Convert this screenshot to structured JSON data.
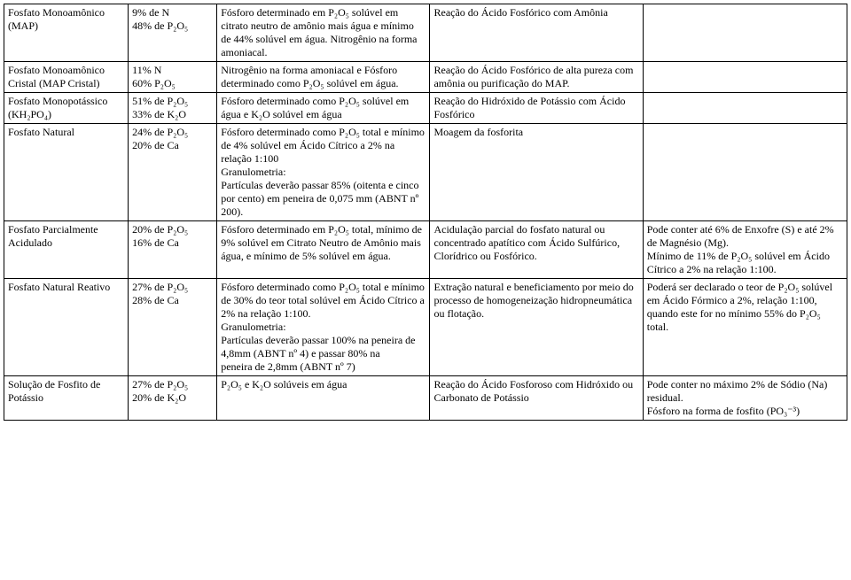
{
  "rows": [
    {
      "c1": "Fosfato Monoamônico (MAP)",
      "c2": "9% de N\n48% de P₂O₅",
      "c3": "Fósforo determinado em P₂O₅ solúvel em citrato neutro de amônio mais água e mínimo de 44% solúvel em água. Nitrogênio na forma amoniacal.",
      "c4": "Reação do Ácido Fosfórico com Amônia",
      "c5": ""
    },
    {
      "c1": "Fosfato Monoamônico Cristal (MAP Cristal)",
      "c2": "11% N\n60% P₂O₅",
      "c3": "Nitrogênio na forma amoniacal e Fósforo determinado como P₂O₅ solúvel em água.",
      "c4": "Reação do Ácido Fosfórico de alta pureza com amônia ou purificação do MAP.",
      "c5": ""
    },
    {
      "c1": "Fosfato Monopotássico (KH₂PO₄)",
      "c2": "51% de P₂O₅\n33% de K₂O",
      "c3": "Fósforo determinado como P₂O₅ solúvel em água e K₂O solúvel em água",
      "c4": "Reação do Hidróxido de Potássio com Ácido Fosfórico",
      "c5": ""
    },
    {
      "c1": "Fosfato Natural",
      "c2": "24% de P₂O₅\n20% de Ca",
      "c3": "Fósforo determinado como P₂O₅ total e mínimo de 4% solúvel em Ácido Cítrico a 2% na relação 1:100\nGranulometria:\nPartículas deverão passar 85% (oitenta e cinco por cento) em peneira de 0,075 mm (ABNT nº 200).",
      "c4": "Moagem da fosforita",
      "c5": ""
    },
    {
      "c1": "Fosfato Parcialmente Acidulado",
      "c2": "20% de P₂O₅\n16% de Ca",
      "c3": "Fósforo determinado em P₂O₅ total, mínimo de 9% solúvel em Citrato Neutro de Amônio mais água, e mínimo de 5% solúvel em água.",
      "c4": "Acidulação parcial do fosfato natural ou concentrado apatítico com Ácido Sulfúrico, Clorídrico ou Fosfórico.",
      "c5": "Pode conter até 6% de Enxofre (S) e até 2% de Magnésio (Mg).\nMínimo de 11% de P₂O₅ solúvel em Ácido Cítrico a 2% na relação 1:100."
    },
    {
      "c1": "Fosfato Natural Reativo",
      "c2": "27% de P₂O₅\n28% de Ca",
      "c3": "Fósforo determinado como P₂O₅ total e mínimo de 30% do teor total solúvel em Ácido Cítrico a 2% na relação 1:100.\nGranulometria:\nPartículas deverão passar 100% na peneira de 4,8mm (ABNT nº 4) e passar 80% na\n   peneira de 2,8mm (ABNT nº 7)",
      "c4": "Extração natural e beneficiamento por meio do processo de homogeneização hidropneumática ou flotação.",
      "c5": "Poderá ser declarado o teor de P₂O₅ solúvel em Ácido Fórmico a 2%, relação 1:100, quando este for no mínimo 55% do P₂O₅ total."
    },
    {
      "c1": "Solução de Fosfito de Potássio",
      "c2": "27% de P₂O₅\n20% de K₂O",
      "c3": "P₂O₅ e K₂O solúveis em água",
      "c4": "Reação do Ácido Fosforoso com Hidróxido ou Carbonato de Potássio",
      "c5": "Pode conter no máximo 2% de Sódio (Na) residual.\nFósforo na forma de fosfito (PO₃⁻³)"
    }
  ]
}
